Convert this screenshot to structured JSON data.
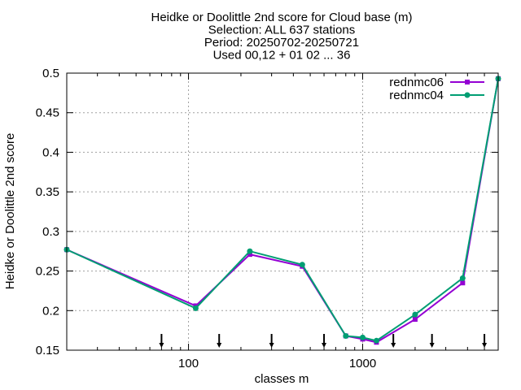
{
  "chart_data": {
    "type": "line",
    "title_lines": [
      "Heidke or Doolittle 2nd score  for Cloud base (m)",
      "Selection: ALL    637 stations",
      "Period: 20250702-20250721",
      "Used 00,12 + 01 02 ... 36"
    ],
    "xlabel": "classes m",
    "ylabel": "Heidke or Doolittle 2nd score",
    "x_scale": "log",
    "xlim": [
      20,
      6000
    ],
    "ylim": [
      0.15,
      0.5
    ],
    "x_ticks": [
      100,
      1000
    ],
    "x_tick_labels": [
      "100",
      "1000"
    ],
    "y_ticks": [
      0.15,
      0.2,
      0.25,
      0.3,
      0.35,
      0.4,
      0.45,
      0.5
    ],
    "y_tick_labels": [
      "0.15",
      "0.2",
      "0.25",
      "0.3",
      "0.35",
      "0.4",
      "0.45",
      "0.5"
    ],
    "grid": true,
    "legend_position": "top-right",
    "series": [
      {
        "name": "rednmc06",
        "color": "#9400d3",
        "marker": "square",
        "x": [
          20,
          110,
          225,
          450,
          800,
          1000,
          1200,
          2000,
          3750,
          6000
        ],
        "values": [
          0.277,
          0.206,
          0.271,
          0.256,
          0.168,
          0.164,
          0.16,
          0.189,
          0.235,
          0.493
        ]
      },
      {
        "name": "rednmc04",
        "color": "#009e73",
        "marker": "circle",
        "x": [
          20,
          110,
          225,
          450,
          800,
          1000,
          1200,
          2000,
          3750,
          6000
        ],
        "values": [
          0.277,
          0.203,
          0.275,
          0.258,
          0.168,
          0.166,
          0.162,
          0.195,
          0.241,
          0.493
        ]
      }
    ],
    "threshold_arrows_x": [
      70,
      150,
      300,
      600,
      1500,
      2500,
      5000
    ]
  }
}
